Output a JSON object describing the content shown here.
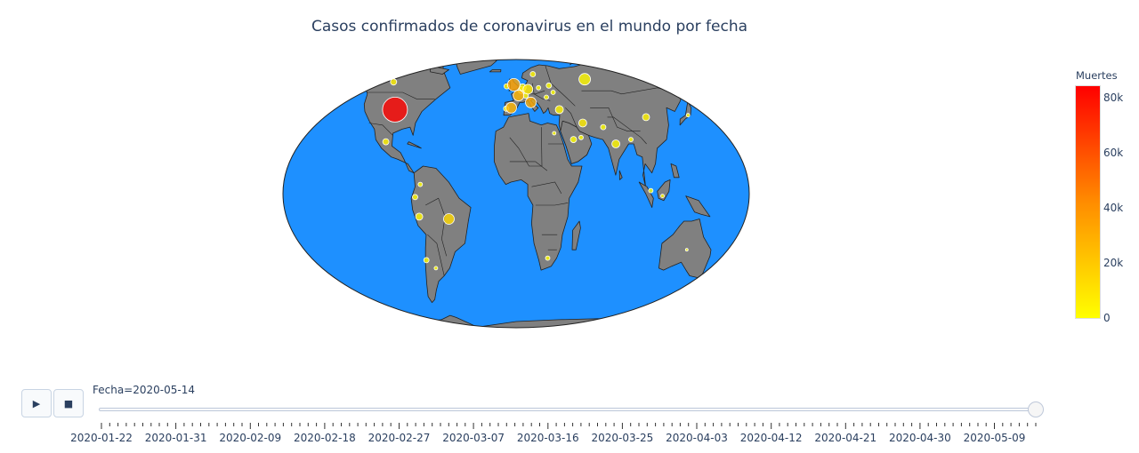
{
  "title": "Casos confirmados de coronavirus en el mundo por fecha",
  "colors": {
    "ocean": "#1e90ff",
    "land": "#808080",
    "border": "#222222",
    "scale_low": "#ffff00",
    "scale_mid": "#ff8c00",
    "scale_high": "#ff0000"
  },
  "colorbar": {
    "title": "Muertes",
    "min": 0,
    "max": 85000,
    "ticks": [
      "0",
      "20k",
      "40k",
      "60k",
      "80k"
    ],
    "tick_values": [
      0,
      20000,
      40000,
      60000,
      80000
    ]
  },
  "controls": {
    "play_icon": "▶",
    "stop_icon": "■"
  },
  "slider": {
    "current_label": "Fecha=2020-05-14",
    "current_index": 113,
    "step_count": 114,
    "labels": [
      "2020-01-22",
      "2020-01-31",
      "2020-02-09",
      "2020-02-18",
      "2020-02-27",
      "2020-03-07",
      "2020-03-16",
      "2020-03-25",
      "2020-04-03",
      "2020-04-12",
      "2020-04-21",
      "2020-04-30",
      "2020-05-09"
    ]
  },
  "bubbles": [
    {
      "country": "United States",
      "lon": -98,
      "lat": 39,
      "deaths": 84000,
      "size": 14
    },
    {
      "country": "United Kingdom",
      "lon": -2,
      "lat": 54,
      "deaths": 33500,
      "size": 7
    },
    {
      "country": "Italy",
      "lon": 12,
      "lat": 43,
      "deaths": 31500,
      "size": 6
    },
    {
      "country": "Spain",
      "lon": -4,
      "lat": 40,
      "deaths": 27300,
      "size": 6
    },
    {
      "country": "France",
      "lon": 2,
      "lat": 47,
      "deaths": 27400,
      "size": 6
    },
    {
      "country": "Germany",
      "lon": 10,
      "lat": 51,
      "deaths": 7900,
      "size": 5.5
    },
    {
      "country": "Russia",
      "lon": 60,
      "lat": 58,
      "deaths": 2300,
      "size": 6.5
    },
    {
      "country": "Brazil",
      "lon": -52,
      "lat": -11,
      "deaths": 13900,
      "size": 6
    },
    {
      "country": "Turkey",
      "lon": 35,
      "lat": 39,
      "deaths": 4000,
      "size": 4.5
    },
    {
      "country": "Iran",
      "lon": 53,
      "lat": 32,
      "deaths": 6900,
      "size": 4.5
    },
    {
      "country": "India",
      "lon": 78,
      "lat": 22,
      "deaths": 2600,
      "size": 4.5
    },
    {
      "country": "China",
      "lon": 104,
      "lat": 35,
      "deaths": 4600,
      "size": 4
    },
    {
      "country": "Peru",
      "lon": -75,
      "lat": -10,
      "deaths": 2500,
      "size": 4
    },
    {
      "country": "Mexico",
      "lon": -102,
      "lat": 23,
      "deaths": 4200,
      "size": 3.5
    },
    {
      "country": "Canada",
      "lon": -106,
      "lat": 56,
      "deaths": 5500,
      "size": 3.5
    },
    {
      "country": "Saudi Arabia",
      "lon": 45,
      "lat": 24,
      "deaths": 250,
      "size": 3.5
    },
    {
      "country": "Pakistan",
      "lon": 69,
      "lat": 30,
      "deaths": 800,
      "size": 3
    },
    {
      "country": "Chile",
      "lon": -71,
      "lat": -30,
      "deaths": 400,
      "size": 3
    },
    {
      "country": "Belgium",
      "lon": 4.5,
      "lat": 50.5,
      "deaths": 8900,
      "size": 4
    },
    {
      "country": "Netherlands",
      "lon": 5.5,
      "lat": 52.3,
      "deaths": 5600,
      "size": 4
    },
    {
      "country": "Ecuador",
      "lon": -78,
      "lat": -1.5,
      "deaths": 2300,
      "size": 3
    },
    {
      "country": "Colombia",
      "lon": -74,
      "lat": 4,
      "deaths": 500,
      "size": 2.5
    },
    {
      "country": "Bangladesh",
      "lon": 90,
      "lat": 24,
      "deaths": 300,
      "size": 2.5
    },
    {
      "country": "Qatar",
      "lon": 51,
      "lat": 25,
      "deaths": 15,
      "size": 2.5
    },
    {
      "country": "Sweden",
      "lon": 15,
      "lat": 62,
      "deaths": 3500,
      "size": 3
    },
    {
      "country": "Switzerland",
      "lon": 8,
      "lat": 47,
      "deaths": 1800,
      "size": 3
    },
    {
      "country": "Portugal",
      "lon": -8,
      "lat": 39.5,
      "deaths": 1200,
      "size": 3
    },
    {
      "country": "Belarus",
      "lon": 28,
      "lat": 53.5,
      "deaths": 150,
      "size": 3
    },
    {
      "country": "Singapore",
      "lon": 104,
      "lat": 1.3,
      "deaths": 20,
      "size": 2.5
    },
    {
      "country": "South Africa",
      "lon": 25,
      "lat": -29,
      "deaths": 250,
      "size": 2.5
    },
    {
      "country": "Argentina",
      "lon": -64,
      "lat": -34,
      "deaths": 350,
      "size": 2
    },
    {
      "country": "Egypt",
      "lon": 30,
      "lat": 27,
      "deaths": 550,
      "size": 2
    },
    {
      "country": "Indonesia",
      "lon": 113,
      "lat": -1,
      "deaths": 1000,
      "size": 2
    },
    {
      "country": "Japan",
      "lon": 138,
      "lat": 36,
      "deaths": 700,
      "size": 2
    },
    {
      "country": "Australia",
      "lon": 134,
      "lat": -25,
      "deaths": 100,
      "size": 1.5
    },
    {
      "country": "Poland",
      "lon": 19,
      "lat": 52,
      "deaths": 900,
      "size": 2.5
    },
    {
      "country": "Ukraine",
      "lon": 31,
      "lat": 49,
      "deaths": 500,
      "size": 2.5
    },
    {
      "country": "Ireland",
      "lon": -8,
      "lat": 53,
      "deaths": 1500,
      "size": 3
    },
    {
      "country": "Romania",
      "lon": 25,
      "lat": 46,
      "deaths": 1000,
      "size": 2.5
    }
  ]
}
